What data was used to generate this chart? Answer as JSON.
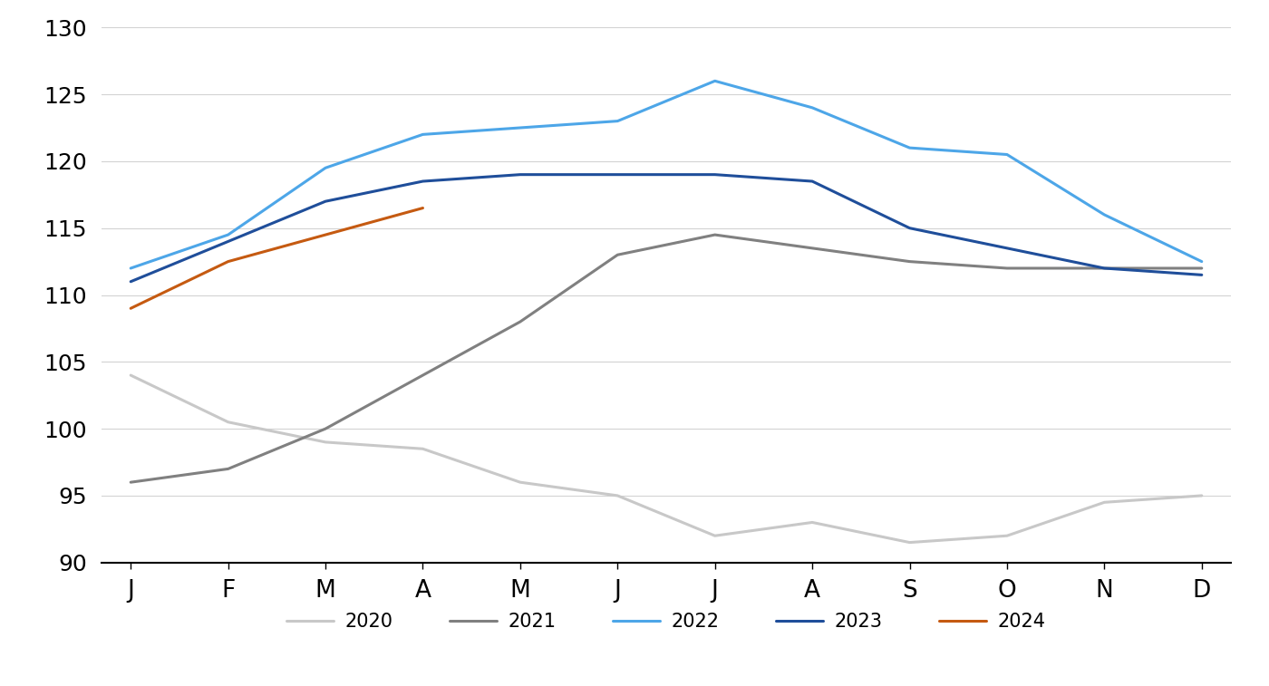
{
  "months": [
    "J",
    "F",
    "M",
    "A",
    "M",
    "J",
    "J",
    "A",
    "S",
    "O",
    "N",
    "D"
  ],
  "series": {
    "2020": [
      104,
      100.5,
      99,
      98.5,
      96,
      95,
      92,
      93,
      91.5,
      92,
      94.5,
      95
    ],
    "2021": [
      96,
      97,
      100,
      104,
      108,
      113,
      114.5,
      113.5,
      112.5,
      112,
      112,
      112
    ],
    "2022": [
      112,
      114.5,
      119.5,
      122,
      122.5,
      123,
      126,
      124,
      121,
      120.5,
      116,
      112.5
    ],
    "2023": [
      111,
      114,
      117,
      118.5,
      119,
      119,
      119,
      118.5,
      115,
      113.5,
      112,
      111.5
    ],
    "2024": [
      109,
      112.5,
      114.5,
      116.5,
      null,
      null,
      null,
      null,
      null,
      null,
      null,
      null
    ]
  },
  "colors": {
    "2020": "#c8c8c8",
    "2021": "#808080",
    "2022": "#4da6e8",
    "2023": "#1f4e9a",
    "2024": "#c55a11"
  },
  "line_widths": {
    "2020": 2.5,
    "2021": 2.5,
    "2022": 2.5,
    "2023": 2.5,
    "2024": 2.5
  },
  "ylim": [
    90,
    130
  ],
  "yticks": [
    90,
    95,
    100,
    105,
    110,
    115,
    120,
    125,
    130
  ],
  "background_color": "#ffffff",
  "grid_color": "#d3d3d3",
  "legend_labels": [
    "2020",
    "2021",
    "2022",
    "2023",
    "2024"
  ]
}
